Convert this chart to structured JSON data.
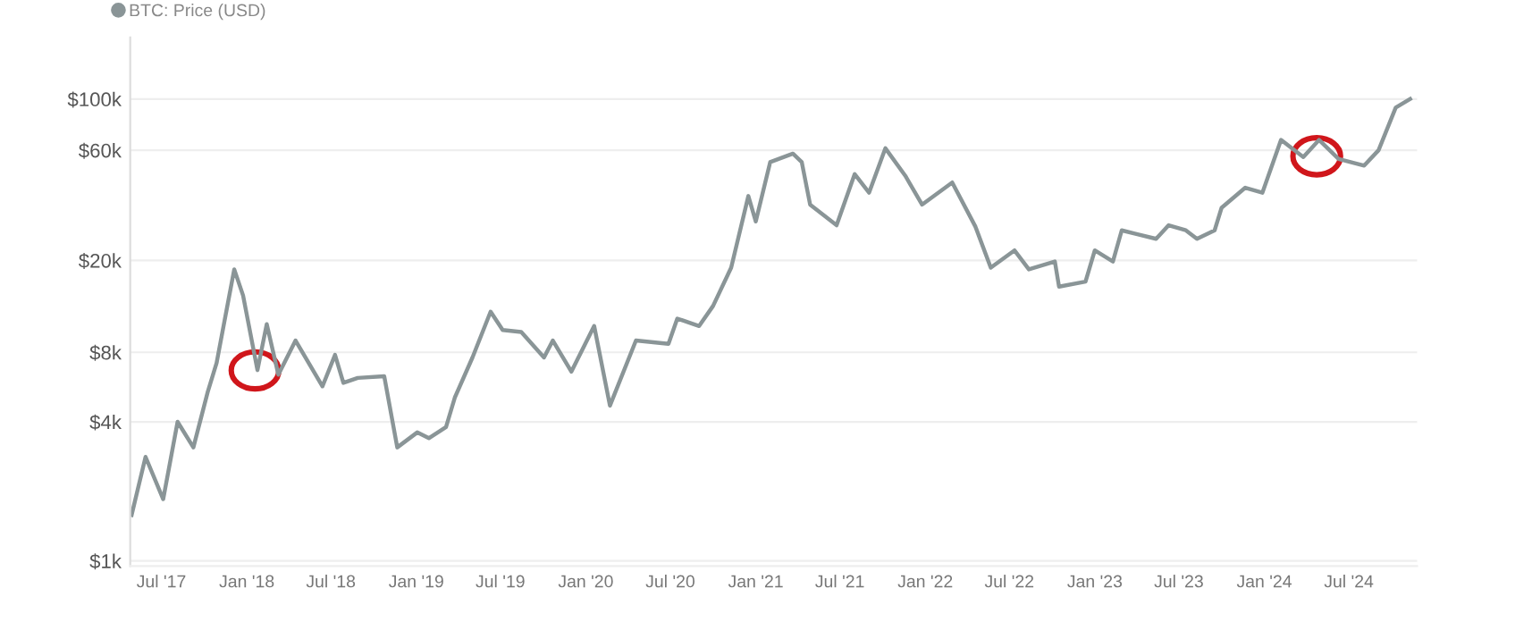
{
  "chart_data": {
    "type": "line",
    "series": [
      {
        "name": "BTC: Price (USD)",
        "color": "#8a9597",
        "x": [
          "2017-04-28",
          "2017-05-28",
          "2017-07-05",
          "2017-08-05",
          "2017-09-08",
          "2017-10-09",
          "2017-10-28",
          "2017-12-05",
          "2017-12-24",
          "2018-01-24",
          "2018-02-13",
          "2018-03-10",
          "2018-04-16",
          "2018-06-13",
          "2018-07-10",
          "2018-07-28",
          "2018-08-28",
          "2018-10-24",
          "2018-11-21",
          "2019-01-03",
          "2019-01-28",
          "2019-03-06",
          "2019-03-25",
          "2019-05-02",
          "2019-06-10",
          "2019-07-06",
          "2019-08-15",
          "2019-10-03",
          "2019-10-22",
          "2019-12-01",
          "2020-01-19",
          "2020-02-22",
          "2020-04-18",
          "2020-06-27",
          "2020-07-16",
          "2020-09-01",
          "2020-10-01",
          "2020-11-09",
          "2020-12-16",
          "2021-01-01",
          "2021-02-01",
          "2021-03-22",
          "2021-04-10",
          "2021-04-28",
          "2021-06-24",
          "2021-08-02",
          "2021-09-02",
          "2021-10-07",
          "2021-11-19",
          "2021-12-25",
          "2022-02-28",
          "2022-04-19",
          "2022-05-22",
          "2022-07-12",
          "2022-08-12",
          "2022-10-07",
          "2022-10-16",
          "2022-12-12",
          "2023-01-01",
          "2023-02-09",
          "2023-02-28",
          "2023-05-13",
          "2023-06-09",
          "2023-07-16",
          "2023-08-09",
          "2023-09-16",
          "2023-10-01",
          "2023-11-21",
          "2023-12-28",
          "2024-02-06",
          "2024-03-25",
          "2024-04-28",
          "2024-06-09",
          "2024-08-03",
          "2024-09-03",
          "2024-10-10",
          "2024-11-10"
        ],
        "values": [
          1580,
          2820,
          1850,
          4000,
          3100,
          5400,
          7200,
          18300,
          14100,
          6700,
          10600,
          6400,
          9000,
          5700,
          7800,
          5900,
          6200,
          6300,
          3100,
          3600,
          3400,
          3800,
          5100,
          7600,
          12000,
          10000,
          9800,
          7600,
          9000,
          6600,
          10400,
          4700,
          9000,
          8700,
          11200,
          10400,
          12700,
          18600,
          38000,
          29500,
          53300,
          58000,
          53300,
          34900,
          28400,
          47300,
          39300,
          61200,
          46500,
          34900,
          43500,
          28000,
          18600,
          22100,
          18300,
          19800,
          15400,
          16200,
          22100,
          19800,
          27000,
          24800,
          28400,
          27000,
          24800,
          27000,
          33800,
          41300,
          39300,
          66500,
          56100,
          66500,
          55000,
          51500,
          60000,
          91800,
          100000
        ]
      }
    ],
    "log": true,
    "ylim": [
      950,
      185000
    ],
    "yticks": [
      {
        "value": 1000,
        "label": "$1k"
      },
      {
        "value": 4000,
        "label": "$4k"
      },
      {
        "value": 8000,
        "label": "$8k"
      },
      {
        "value": 20000,
        "label": "$20k"
      },
      {
        "value": 60000,
        "label": "$60k"
      },
      {
        "value": 100000,
        "label": "$100k"
      }
    ],
    "xlim": [
      "2017-04-25",
      "2024-11-25"
    ],
    "xticks": [
      {
        "value": "2017-07-01",
        "label": "Jul '17"
      },
      {
        "value": "2018-01-01",
        "label": "Jan '18"
      },
      {
        "value": "2018-07-01",
        "label": "Jul '18"
      },
      {
        "value": "2019-01-01",
        "label": "Jan '19"
      },
      {
        "value": "2019-07-01",
        "label": "Jul '19"
      },
      {
        "value": "2020-01-01",
        "label": "Jan '20"
      },
      {
        "value": "2020-07-01",
        "label": "Jul '20"
      },
      {
        "value": "2021-01-01",
        "label": "Jan '21"
      },
      {
        "value": "2021-07-01",
        "label": "Jul '21"
      },
      {
        "value": "2022-01-01",
        "label": "Jan '22"
      },
      {
        "value": "2022-07-01",
        "label": "Jul '22"
      },
      {
        "value": "2023-01-01",
        "label": "Jan '23"
      },
      {
        "value": "2023-07-01",
        "label": "Jul '23"
      },
      {
        "value": "2024-01-01",
        "label": "Jan '24"
      },
      {
        "value": "2024-07-01",
        "label": "Jul '24"
      }
    ],
    "grid": "y",
    "legend": "top left"
  }
}
